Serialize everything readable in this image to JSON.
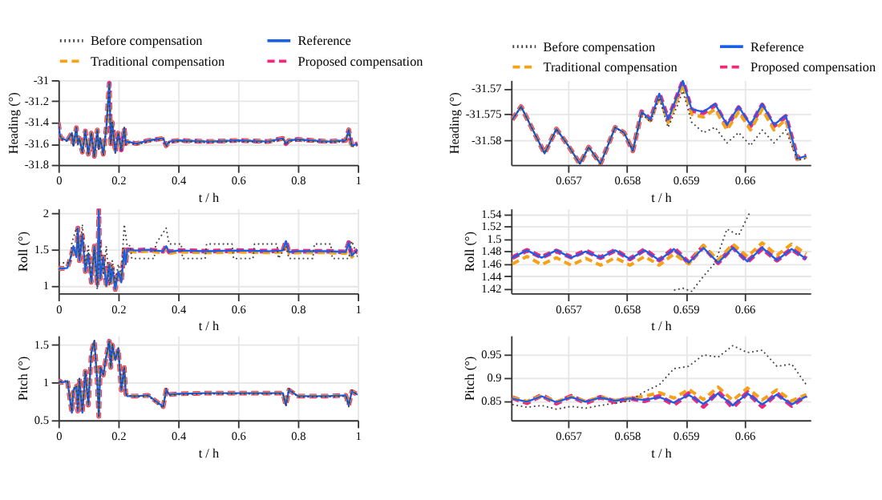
{
  "chart_data": [
    {
      "type": "line",
      "ylabel": "Heading (°)",
      "xlabel": "t / h",
      "xlim": [
        0,
        1
      ],
      "xticks": [
        0,
        0.2,
        0.4,
        0.6,
        0.8,
        1
      ],
      "ylim": [
        -31.8,
        -31
      ],
      "yticks": [
        -31.8,
        -31.6,
        -31.4,
        -31.2,
        -31
      ],
      "grid": true,
      "legend": "top",
      "x": [
        0,
        0.005,
        0.01,
        0.03,
        0.045,
        0.05,
        0.06,
        0.065,
        0.07,
        0.08,
        0.09,
        0.1,
        0.11,
        0.12,
        0.13,
        0.135,
        0.14,
        0.15,
        0.16,
        0.17,
        0.175,
        0.18,
        0.19,
        0.2,
        0.21,
        0.22,
        0.225,
        0.23,
        0.26,
        0.3,
        0.35,
        0.36,
        0.37,
        0.4,
        0.5,
        0.6,
        0.7,
        0.75,
        0.76,
        0.77,
        0.8,
        0.9,
        0.96,
        0.97,
        0.98,
        1.0
      ],
      "series": [
        {
          "name": "Before compensation",
          "color": "#404040",
          "line_style": "dotted",
          "values": [
            -31.4,
            -31.53,
            -31.56,
            -31.58,
            -31.5,
            -31.63,
            -31.45,
            -31.61,
            -31.55,
            -31.69,
            -31.48,
            -31.71,
            -31.5,
            -31.73,
            -31.47,
            -31.66,
            -31.55,
            -31.71,
            -31.45,
            -31.04,
            -31.61,
            -31.4,
            -31.69,
            -31.5,
            -31.67,
            -31.45,
            -31.61,
            -31.59,
            -31.61,
            -31.58,
            -31.56,
            -31.63,
            -31.59,
            -31.58,
            -31.59,
            -31.58,
            -31.59,
            -31.56,
            -31.61,
            -31.58,
            -31.57,
            -31.59,
            -31.58,
            -31.48,
            -31.63,
            -31.61
          ]
        },
        {
          "name": "Reference",
          "color": "#1a5fe8",
          "line_style": "solid",
          "values": [
            -31.4,
            -31.52,
            -31.55,
            -31.57,
            -31.5,
            -31.62,
            -31.45,
            -31.6,
            -31.55,
            -31.68,
            -31.48,
            -31.7,
            -31.5,
            -31.72,
            -31.47,
            -31.65,
            -31.55,
            -31.7,
            -31.45,
            -31.03,
            -31.6,
            -31.4,
            -31.68,
            -31.5,
            -31.66,
            -31.45,
            -31.6,
            -31.58,
            -31.6,
            -31.57,
            -31.55,
            -31.62,
            -31.58,
            -31.57,
            -31.58,
            -31.57,
            -31.58,
            -31.55,
            -31.6,
            -31.57,
            -31.56,
            -31.58,
            -31.57,
            -31.47,
            -31.62,
            -31.6
          ]
        },
        {
          "name": "Traditional compensation",
          "color": "#f5a21b",
          "line_style": "dashed",
          "values": [
            -31.4,
            -31.52,
            -31.55,
            -31.57,
            -31.5,
            -31.62,
            -31.45,
            -31.6,
            -31.55,
            -31.68,
            -31.48,
            -31.7,
            -31.5,
            -31.72,
            -31.47,
            -31.65,
            -31.55,
            -31.7,
            -31.45,
            -31.04,
            -31.6,
            -31.4,
            -31.68,
            -31.5,
            -31.66,
            -31.45,
            -31.6,
            -31.58,
            -31.6,
            -31.57,
            -31.55,
            -31.62,
            -31.58,
            -31.57,
            -31.58,
            -31.57,
            -31.58,
            -31.55,
            -31.6,
            -31.57,
            -31.56,
            -31.58,
            -31.57,
            -31.47,
            -31.62,
            -31.6
          ]
        },
        {
          "name": "Proposed compensation",
          "color": "#f0287a",
          "line_style": "dashed",
          "values": [
            -31.4,
            -31.52,
            -31.55,
            -31.57,
            -31.5,
            -31.62,
            -31.45,
            -31.6,
            -31.55,
            -31.68,
            -31.48,
            -31.7,
            -31.5,
            -31.72,
            -31.47,
            -31.65,
            -31.55,
            -31.7,
            -31.45,
            -31.03,
            -31.6,
            -31.4,
            -31.68,
            -31.5,
            -31.66,
            -31.45,
            -31.6,
            -31.58,
            -31.6,
            -31.57,
            -31.55,
            -31.62,
            -31.58,
            -31.57,
            -31.58,
            -31.57,
            -31.58,
            -31.55,
            -31.6,
            -31.57,
            -31.56,
            -31.58,
            -31.57,
            -31.47,
            -31.62,
            -31.6
          ]
        }
      ]
    },
    {
      "type": "line",
      "ylabel": "Roll (°)",
      "xlabel": "t / h",
      "xlim": [
        0,
        1
      ],
      "xticks": [
        0,
        0.2,
        0.4,
        0.6,
        0.8,
        1
      ],
      "ylim": [
        0.9,
        2.07
      ],
      "yticks": [
        1,
        1.5,
        2
      ],
      "grid": true,
      "legend": "top",
      "x": [
        0,
        0.005,
        0.01,
        0.03,
        0.045,
        0.05,
        0.06,
        0.065,
        0.07,
        0.08,
        0.09,
        0.1,
        0.11,
        0.12,
        0.13,
        0.135,
        0.14,
        0.15,
        0.16,
        0.17,
        0.175,
        0.18,
        0.19,
        0.2,
        0.21,
        0.22,
        0.225,
        0.23,
        0.26,
        0.3,
        0.35,
        0.36,
        0.37,
        0.4,
        0.5,
        0.6,
        0.7,
        0.75,
        0.76,
        0.77,
        0.8,
        0.9,
        0.96,
        0.97,
        0.98,
        1.0
      ],
      "series": [
        {
          "name": "Before compensation",
          "color": "#404040",
          "line_style": "dotted",
          "x": [
            0,
            0.04,
            0.045,
            0.06,
            0.07,
            0.08,
            0.09,
            0.1,
            0.11,
            0.12,
            0.13,
            0.14,
            0.15,
            0.16,
            0.17,
            0.18,
            0.19,
            0.2,
            0.21,
            0.22,
            0.23,
            0.24,
            0.245,
            0.32,
            0.325,
            0.36,
            0.37,
            0.41,
            0.415,
            0.49,
            0.495,
            0.58,
            0.585,
            0.65,
            0.655,
            0.73,
            0.735,
            0.76,
            0.77,
            0.85,
            0.855,
            0.91,
            0.915,
            0.97,
            0.98,
            1.0
          ],
          "values": [
            1.32,
            1.32,
            1.6,
            1.8,
            1.4,
            1.85,
            1.3,
            1.55,
            1.1,
            1.5,
            0.95,
            1.6,
            1.15,
            1.55,
            1.0,
            1.35,
            1.05,
            1.3,
            1.15,
            1.85,
            1.55,
            1.56,
            1.38,
            1.38,
            1.58,
            1.8,
            1.58,
            1.58,
            1.38,
            1.38,
            1.58,
            1.58,
            1.38,
            1.38,
            1.58,
            1.58,
            1.38,
            1.55,
            1.38,
            1.38,
            1.58,
            1.58,
            1.38,
            1.38,
            1.62,
            1.4
          ]
        },
        {
          "name": "Reference",
          "color": "#1a5fe8",
          "line_style": "solid",
          "values": [
            1.22,
            1.25,
            1.24,
            1.25,
            1.45,
            1.55,
            1.4,
            1.8,
            1.35,
            1.7,
            1.2,
            1.45,
            1.05,
            1.55,
            1.0,
            2.05,
            1.1,
            1.4,
            1.0,
            1.3,
            1.05,
            1.25,
            0.95,
            1.2,
            1.05,
            1.5,
            1.3,
            1.5,
            1.49,
            1.5,
            1.48,
            1.55,
            1.47,
            1.49,
            1.48,
            1.49,
            1.48,
            1.49,
            1.62,
            1.47,
            1.48,
            1.48,
            1.47,
            1.6,
            1.42,
            1.5
          ]
        },
        {
          "name": "Traditional compensation",
          "color": "#f5a21b",
          "line_style": "dashed",
          "values": [
            1.22,
            1.25,
            1.24,
            1.25,
            1.45,
            1.55,
            1.4,
            1.8,
            1.35,
            1.7,
            1.2,
            1.45,
            1.05,
            1.55,
            1.0,
            2.04,
            1.1,
            1.4,
            1.0,
            1.3,
            1.05,
            1.25,
            0.95,
            1.2,
            1.05,
            1.5,
            1.3,
            1.48,
            1.47,
            1.48,
            1.46,
            1.53,
            1.45,
            1.47,
            1.46,
            1.47,
            1.46,
            1.47,
            1.6,
            1.45,
            1.46,
            1.46,
            1.45,
            1.58,
            1.4,
            1.48
          ]
        },
        {
          "name": "Proposed compensation",
          "color": "#f0287a",
          "line_style": "dashed",
          "values": [
            1.22,
            1.25,
            1.24,
            1.25,
            1.45,
            1.55,
            1.4,
            1.8,
            1.35,
            1.7,
            1.2,
            1.45,
            1.05,
            1.55,
            1.0,
            2.05,
            1.1,
            1.4,
            1.0,
            1.3,
            1.05,
            1.25,
            0.95,
            1.2,
            1.05,
            1.5,
            1.3,
            1.5,
            1.49,
            1.5,
            1.48,
            1.55,
            1.47,
            1.49,
            1.48,
            1.49,
            1.48,
            1.49,
            1.62,
            1.47,
            1.48,
            1.48,
            1.47,
            1.6,
            1.42,
            1.5
          ]
        }
      ]
    },
    {
      "type": "line",
      "ylabel": "Pitch (°)",
      "xlabel": "t / h",
      "xlim": [
        0,
        1
      ],
      "xticks": [
        0,
        0.2,
        0.4,
        0.6,
        0.8,
        1
      ],
      "ylim": [
        0.5,
        1.625
      ],
      "yticks": [
        0.5,
        1,
        1.5
      ],
      "grid": true,
      "legend": "top",
      "x": [
        0,
        0.005,
        0.01,
        0.03,
        0.045,
        0.05,
        0.06,
        0.065,
        0.07,
        0.08,
        0.09,
        0.1,
        0.11,
        0.12,
        0.13,
        0.135,
        0.14,
        0.15,
        0.16,
        0.17,
        0.175,
        0.18,
        0.19,
        0.2,
        0.21,
        0.22,
        0.225,
        0.23,
        0.26,
        0.3,
        0.35,
        0.36,
        0.37,
        0.4,
        0.5,
        0.6,
        0.7,
        0.75,
        0.76,
        0.77,
        0.8,
        0.9,
        0.96,
        0.97,
        0.98,
        1.0
      ],
      "series": [
        {
          "name": "Before compensation",
          "color": "#404040",
          "line_style": "dotted",
          "values": [
            0.99,
            1.03,
            1.01,
            1.03,
            0.62,
            0.92,
            0.96,
            0.63,
            1.06,
            0.62,
            1.16,
            0.72,
            1.41,
            1.56,
            1.01,
            0.56,
            1.21,
            1.11,
            1.36,
            1.55,
            1.21,
            1.51,
            1.31,
            1.46,
            0.91,
            1.21,
            0.86,
            0.83,
            0.81,
            0.82,
            0.66,
            0.92,
            0.83,
            0.84,
            0.85,
            0.85,
            0.85,
            0.85,
            0.68,
            0.92,
            0.81,
            0.81,
            0.82,
            0.68,
            0.9,
            0.83
          ]
        },
        {
          "name": "Reference",
          "color": "#1a5fe8",
          "line_style": "solid",
          "values": [
            0.98,
            1.02,
            1.0,
            1.02,
            0.6,
            0.9,
            0.95,
            0.62,
            1.05,
            0.6,
            1.15,
            0.7,
            1.4,
            1.55,
            1.0,
            0.55,
            1.2,
            1.1,
            1.35,
            1.55,
            1.2,
            1.5,
            1.3,
            1.45,
            0.9,
            1.2,
            0.85,
            0.82,
            0.82,
            0.83,
            0.68,
            0.9,
            0.84,
            0.85,
            0.86,
            0.86,
            0.86,
            0.86,
            0.7,
            0.9,
            0.82,
            0.82,
            0.83,
            0.7,
            0.88,
            0.84
          ]
        },
        {
          "name": "Traditional compensation",
          "color": "#f5a21b",
          "line_style": "dashed",
          "values": [
            0.98,
            1.02,
            1.0,
            1.02,
            0.6,
            0.9,
            0.95,
            0.62,
            1.05,
            0.6,
            1.15,
            0.7,
            1.4,
            1.55,
            1.0,
            0.55,
            1.2,
            1.1,
            1.35,
            1.55,
            1.2,
            1.5,
            1.3,
            1.45,
            0.9,
            1.2,
            0.85,
            0.82,
            0.82,
            0.83,
            0.68,
            0.9,
            0.84,
            0.85,
            0.86,
            0.86,
            0.86,
            0.86,
            0.7,
            0.9,
            0.82,
            0.82,
            0.83,
            0.7,
            0.88,
            0.84
          ]
        },
        {
          "name": "Proposed compensation",
          "color": "#f0287a",
          "line_style": "dashed",
          "values": [
            0.98,
            1.02,
            1.0,
            1.02,
            0.6,
            0.9,
            0.95,
            0.62,
            1.05,
            0.6,
            1.15,
            0.7,
            1.4,
            1.55,
            1.0,
            0.55,
            1.2,
            1.1,
            1.35,
            1.55,
            1.2,
            1.5,
            1.3,
            1.45,
            0.9,
            1.2,
            0.85,
            0.82,
            0.82,
            0.83,
            0.68,
            0.9,
            0.84,
            0.85,
            0.86,
            0.86,
            0.86,
            0.86,
            0.7,
            0.9,
            0.82,
            0.82,
            0.83,
            0.7,
            0.88,
            0.84
          ]
        }
      ]
    },
    {
      "type": "line",
      "ylabel": "Heading (°)",
      "xlabel": "t / h",
      "xlim": [
        0.65603,
        0.66112
      ],
      "xticks": [
        0.657,
        0.658,
        0.659,
        0.66
      ],
      "ylim": [
        -31.5847,
        -31.5684
      ],
      "yticks": [
        -31.58,
        -31.575,
        -31.57
      ],
      "grid": true,
      "legend": "top",
      "x": [
        0.65605,
        0.6562,
        0.6564,
        0.6566,
        0.6568,
        0.657,
        0.6572,
        0.65735,
        0.65755,
        0.6578,
        0.65795,
        0.6581,
        0.65825,
        0.6584,
        0.65855,
        0.6587,
        0.65885,
        0.65895,
        0.6591,
        0.6593,
        0.6595,
        0.6597,
        0.6599,
        0.6601,
        0.6603,
        0.6605,
        0.6607,
        0.6609,
        0.66105
      ],
      "series": [
        {
          "name": "Before compensation",
          "color": "#404040",
          "line_style": "dotted",
          "values": [
            -31.576,
            -31.5735,
            -31.578,
            -31.5825,
            -31.5778,
            -31.581,
            -31.5845,
            -31.5813,
            -31.5845,
            -31.5775,
            -31.5785,
            -31.582,
            -31.5748,
            -31.5765,
            -31.5718,
            -31.5775,
            -31.5735,
            -31.5705,
            -31.5765,
            -31.5785,
            -31.5775,
            -31.5805,
            -31.5785,
            -31.581,
            -31.578,
            -31.5805,
            -31.578,
            -31.5838,
            -31.5835
          ]
        },
        {
          "name": "Reference",
          "color": "#1a5fe8",
          "line_style": "solid",
          "values": [
            -31.576,
            -31.5735,
            -31.578,
            -31.5825,
            -31.5778,
            -31.581,
            -31.5845,
            -31.5813,
            -31.5845,
            -31.5775,
            -31.5785,
            -31.582,
            -31.5745,
            -31.576,
            -31.571,
            -31.576,
            -31.5715,
            -31.5685,
            -31.574,
            -31.5745,
            -31.573,
            -31.577,
            -31.5735,
            -31.577,
            -31.573,
            -31.577,
            -31.5752,
            -31.5835,
            -31.583
          ]
        },
        {
          "name": "Traditional compensation",
          "color": "#f5a21b",
          "line_style": "dashed",
          "values": [
            -31.576,
            -31.5735,
            -31.578,
            -31.5825,
            -31.5778,
            -31.581,
            -31.5845,
            -31.5813,
            -31.5845,
            -31.5775,
            -31.5785,
            -31.582,
            -31.5746,
            -31.5762,
            -31.5713,
            -31.5766,
            -31.5722,
            -31.5692,
            -31.575,
            -31.5755,
            -31.574,
            -31.578,
            -31.5745,
            -31.578,
            -31.574,
            -31.578,
            -31.576,
            -31.5836,
            -31.5832
          ]
        },
        {
          "name": "Proposed compensation",
          "color": "#f0287a",
          "line_style": "dashed",
          "values": [
            -31.576,
            -31.5735,
            -31.578,
            -31.5825,
            -31.5778,
            -31.581,
            -31.5845,
            -31.5813,
            -31.5845,
            -31.5775,
            -31.5785,
            -31.582,
            -31.5745,
            -31.576,
            -31.571,
            -31.576,
            -31.5716,
            -31.5687,
            -31.5742,
            -31.5747,
            -31.5732,
            -31.5772,
            -31.5737,
            -31.5772,
            -31.5732,
            -31.5772,
            -31.5754,
            -31.5835,
            -31.583
          ]
        }
      ]
    },
    {
      "type": "line",
      "ylabel": "Roll (°)",
      "xlabel": "t / h",
      "xlim": [
        0.65603,
        0.66112
      ],
      "xticks": [
        0.657,
        0.658,
        0.659,
        0.66
      ],
      "ylim": [
        1.413,
        1.549
      ],
      "yticks": [
        1.42,
        1.44,
        1.46,
        1.48,
        1.5,
        1.52,
        1.54
      ],
      "grid": true,
      "legend": "top",
      "x": [
        0.65605,
        0.6563,
        0.65655,
        0.6568,
        0.65705,
        0.6573,
        0.65755,
        0.6578,
        0.65805,
        0.6583,
        0.65855,
        0.6588,
        0.65905,
        0.6593,
        0.65955,
        0.6598,
        0.66005,
        0.6603,
        0.66055,
        0.6608,
        0.66105
      ],
      "series": [
        {
          "name": "Before compensation",
          "color": "#404040",
          "line_style": "dotted",
          "x": [
            0.6588,
            0.65895,
            0.6591,
            0.6593,
            0.6595,
            0.6597,
            0.6599,
            0.6601
          ],
          "values": [
            1.418,
            1.421,
            1.416,
            1.44,
            1.462,
            1.516,
            1.506,
            1.545
          ]
        },
        {
          "name": "Reference",
          "color": "#1a5fe8",
          "line_style": "solid",
          "values": [
            1.47,
            1.482,
            1.47,
            1.482,
            1.47,
            1.48,
            1.47,
            1.482,
            1.468,
            1.482,
            1.466,
            1.484,
            1.462,
            1.486,
            1.462,
            1.486,
            1.464,
            1.486,
            1.466,
            1.484,
            1.468
          ]
        },
        {
          "name": "Traditional compensation",
          "color": "#f5a21b",
          "line_style": "dashed",
          "values": [
            1.46,
            1.472,
            1.459,
            1.47,
            1.458,
            1.469,
            1.458,
            1.47,
            1.458,
            1.472,
            1.458,
            1.476,
            1.46,
            1.49,
            1.466,
            1.492,
            1.472,
            1.494,
            1.474,
            1.492,
            1.476
          ]
        },
        {
          "name": "Proposed compensation",
          "color": "#f0287a",
          "line_style": "dashed",
          "values": [
            1.47,
            1.482,
            1.471,
            1.481,
            1.471,
            1.481,
            1.47,
            1.482,
            1.468,
            1.483,
            1.466,
            1.485,
            1.462,
            1.488,
            1.462,
            1.487,
            1.464,
            1.485,
            1.466,
            1.484,
            1.468
          ]
        }
      ]
    },
    {
      "type": "line",
      "ylabel": "Pitch (°)",
      "xlabel": "t / h",
      "xlim": [
        0.65603,
        0.66112
      ],
      "xticks": [
        0.657,
        0.658,
        0.659,
        0.66
      ],
      "ylim": [
        0.808,
        0.992
      ],
      "yticks": [
        0.85,
        0.9,
        0.95
      ],
      "grid": true,
      "legend": "top",
      "x": [
        0.65605,
        0.6563,
        0.65655,
        0.6568,
        0.65705,
        0.6573,
        0.65755,
        0.6578,
        0.65805,
        0.6583,
        0.65855,
        0.6588,
        0.65905,
        0.6593,
        0.65955,
        0.6598,
        0.66005,
        0.6603,
        0.66055,
        0.6608,
        0.66105
      ],
      "series": [
        {
          "name": "Before compensation",
          "color": "#404040",
          "line_style": "dotted",
          "values": [
            0.842,
            0.836,
            0.84,
            0.832,
            0.838,
            0.834,
            0.84,
            0.845,
            0.85,
            0.87,
            0.885,
            0.92,
            0.925,
            0.95,
            0.945,
            0.97,
            0.955,
            0.96,
            0.925,
            0.93,
            0.885
          ]
        },
        {
          "name": "Reference",
          "color": "#1a5fe8",
          "line_style": "solid",
          "values": [
            0.855,
            0.848,
            0.86,
            0.847,
            0.858,
            0.848,
            0.857,
            0.85,
            0.855,
            0.852,
            0.858,
            0.846,
            0.863,
            0.843,
            0.866,
            0.84,
            0.866,
            0.842,
            0.864,
            0.842,
            0.86
          ]
        },
        {
          "name": "Traditional compensation",
          "color": "#f5a21b",
          "line_style": "dashed",
          "values": [
            0.857,
            0.849,
            0.861,
            0.848,
            0.859,
            0.849,
            0.858,
            0.851,
            0.856,
            0.86,
            0.868,
            0.856,
            0.875,
            0.853,
            0.88,
            0.851,
            0.878,
            0.852,
            0.874,
            0.85,
            0.864
          ]
        },
        {
          "name": "Proposed compensation",
          "color": "#f0287a",
          "line_style": "dashed",
          "values": [
            0.857,
            0.846,
            0.862,
            0.845,
            0.86,
            0.846,
            0.858,
            0.848,
            0.856,
            0.85,
            0.86,
            0.842,
            0.866,
            0.838,
            0.87,
            0.836,
            0.868,
            0.838,
            0.866,
            0.84,
            0.862
          ]
        }
      ]
    }
  ]
}
